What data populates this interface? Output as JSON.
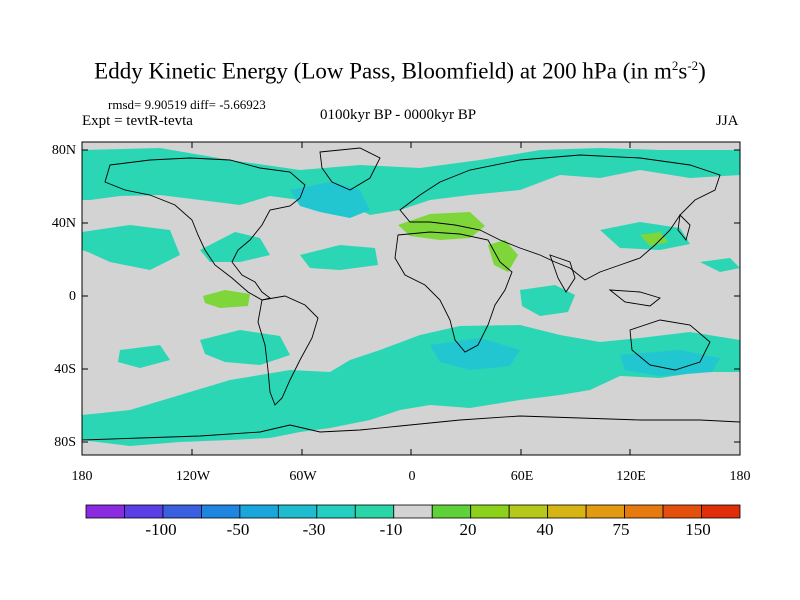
{
  "title": {
    "main": "Eddy Kinetic Energy (Low Pass, Bloomfield) at 200 hPa (in m",
    "sup1": "2",
    "mid": "s",
    "sup2": "-2",
    "end": ")"
  },
  "stats": "rmsd= 9.90519 diff= -5.66923",
  "experiment": "Expt = tevtR-tevta",
  "period": "0100kyr BP - 0000kyr BP",
  "season": "JJA",
  "lat_ticks": [
    "80N",
    "40N",
    "0",
    "40S",
    "80S"
  ],
  "lon_ticks": [
    "180",
    "120W",
    "60W",
    "0",
    "60E",
    "120E",
    "180"
  ],
  "colorbar": {
    "labels": [
      "-100",
      "-50",
      "-30",
      "-10",
      "20",
      "40",
      "75",
      "150"
    ],
    "colors": [
      "#8a2be2",
      "#5a3ee6",
      "#3a5fe0",
      "#1e86e0",
      "#19a6dc",
      "#1dbccf",
      "#22cfc0",
      "#2ad6a8",
      "#d3d3d3",
      "#5fd23a",
      "#8cd21c",
      "#b6c81a",
      "#d6b414",
      "#e29a10",
      "#e67a0e",
      "#e4500c",
      "#e02e0a"
    ]
  },
  "palette": {
    "land_zero": "#d3d3d3",
    "neg_light": "#2ad6b4",
    "neg_mid": "#22c6d0",
    "pos_light": "#7ed63a"
  }
}
